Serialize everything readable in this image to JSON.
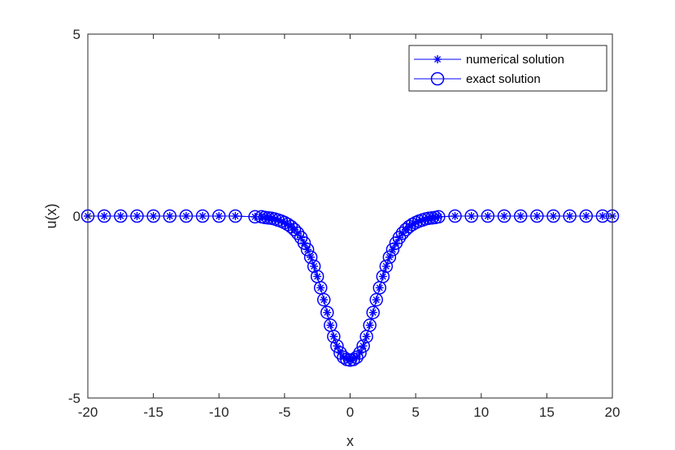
{
  "chart_data": {
    "type": "line",
    "title": "",
    "xlabel": "x",
    "ylabel": "u(x)",
    "xlim": [
      -20,
      20
    ],
    "ylim": [
      -5,
      5
    ],
    "xticks": [
      -20,
      -15,
      -10,
      -5,
      0,
      5,
      10,
      15,
      20
    ],
    "yticks": [
      -5,
      0,
      5
    ],
    "xtick_labels": [
      "-20",
      "-15",
      "-10",
      "-5",
      "0",
      "5",
      "10",
      "15",
      "20"
    ],
    "ytick_labels": [
      "-5",
      "0",
      "5"
    ],
    "grid": false,
    "legend_position": "top-right",
    "line_color": "#0000ff",
    "x": [
      -20,
      -18.75,
      -17.5,
      -16.25,
      -15,
      -13.75,
      -12.5,
      -11.25,
      -10,
      -8.75,
      -7.25,
      -6.75,
      -6.5,
      -6.25,
      -6,
      -5.75,
      -5.5,
      -5.25,
      -5,
      -4.75,
      -4.5,
      -4.25,
      -4,
      -3.75,
      -3.5,
      -3.25,
      -3,
      -2.75,
      -2.5,
      -2.25,
      -2,
      -1.75,
      -1.5,
      -1.25,
      -1,
      -0.75,
      -0.5,
      -0.25,
      0,
      0.25,
      0.5,
      0.75,
      1,
      1.25,
      1.5,
      1.75,
      2,
      2.25,
      2.5,
      2.75,
      3,
      3.25,
      3.5,
      3.75,
      4,
      4.25,
      4.5,
      4.75,
      5,
      5.25,
      5.5,
      5.75,
      6,
      6.25,
      6.5,
      6.75,
      8,
      9.25,
      10.5,
      11.75,
      13,
      14.25,
      15.5,
      16.75,
      18,
      19.25,
      20
    ],
    "series": [
      {
        "name": "numerical solution",
        "marker": "asterisk",
        "values": [
          0,
          0,
          0,
          0,
          0,
          0,
          0,
          0,
          0,
          0,
          -0.02,
          -0.02,
          -0.04,
          -0.05,
          -0.06,
          -0.08,
          -0.11,
          -0.14,
          -0.18,
          -0.23,
          -0.29,
          -0.37,
          -0.47,
          -0.59,
          -0.74,
          -0.92,
          -1.13,
          -1.38,
          -1.66,
          -1.97,
          -2.3,
          -2.65,
          -3.0,
          -3.31,
          -3.57,
          -3.76,
          -3.88,
          -3.94,
          -3.96,
          -3.94,
          -3.88,
          -3.76,
          -3.57,
          -3.31,
          -3.0,
          -2.65,
          -2.3,
          -1.97,
          -1.66,
          -1.38,
          -1.13,
          -0.92,
          -0.74,
          -0.59,
          -0.47,
          -0.37,
          -0.29,
          -0.23,
          -0.18,
          -0.14,
          -0.11,
          -0.08,
          -0.06,
          -0.05,
          -0.04,
          -0.02,
          0,
          0,
          0,
          0,
          0,
          0,
          0,
          0,
          0,
          0,
          0
        ]
      },
      {
        "name": "exact solution",
        "marker": "circle",
        "values": [
          0,
          0,
          0,
          0,
          0,
          0,
          0,
          0,
          0,
          0,
          -0.02,
          -0.02,
          -0.04,
          -0.05,
          -0.06,
          -0.08,
          -0.11,
          -0.14,
          -0.18,
          -0.23,
          -0.29,
          -0.37,
          -0.47,
          -0.59,
          -0.74,
          -0.92,
          -1.13,
          -1.38,
          -1.66,
          -1.97,
          -2.3,
          -2.65,
          -3.0,
          -3.31,
          -3.57,
          -3.76,
          -3.88,
          -3.94,
          -3.96,
          -3.94,
          -3.88,
          -3.76,
          -3.57,
          -3.31,
          -3.0,
          -2.65,
          -2.3,
          -1.97,
          -1.66,
          -1.38,
          -1.13,
          -0.92,
          -0.74,
          -0.59,
          -0.47,
          -0.37,
          -0.29,
          -0.23,
          -0.18,
          -0.14,
          -0.11,
          -0.08,
          -0.06,
          -0.05,
          -0.04,
          -0.02,
          0,
          0,
          0,
          0,
          0,
          0,
          0,
          0,
          0,
          0,
          0
        ]
      }
    ]
  }
}
